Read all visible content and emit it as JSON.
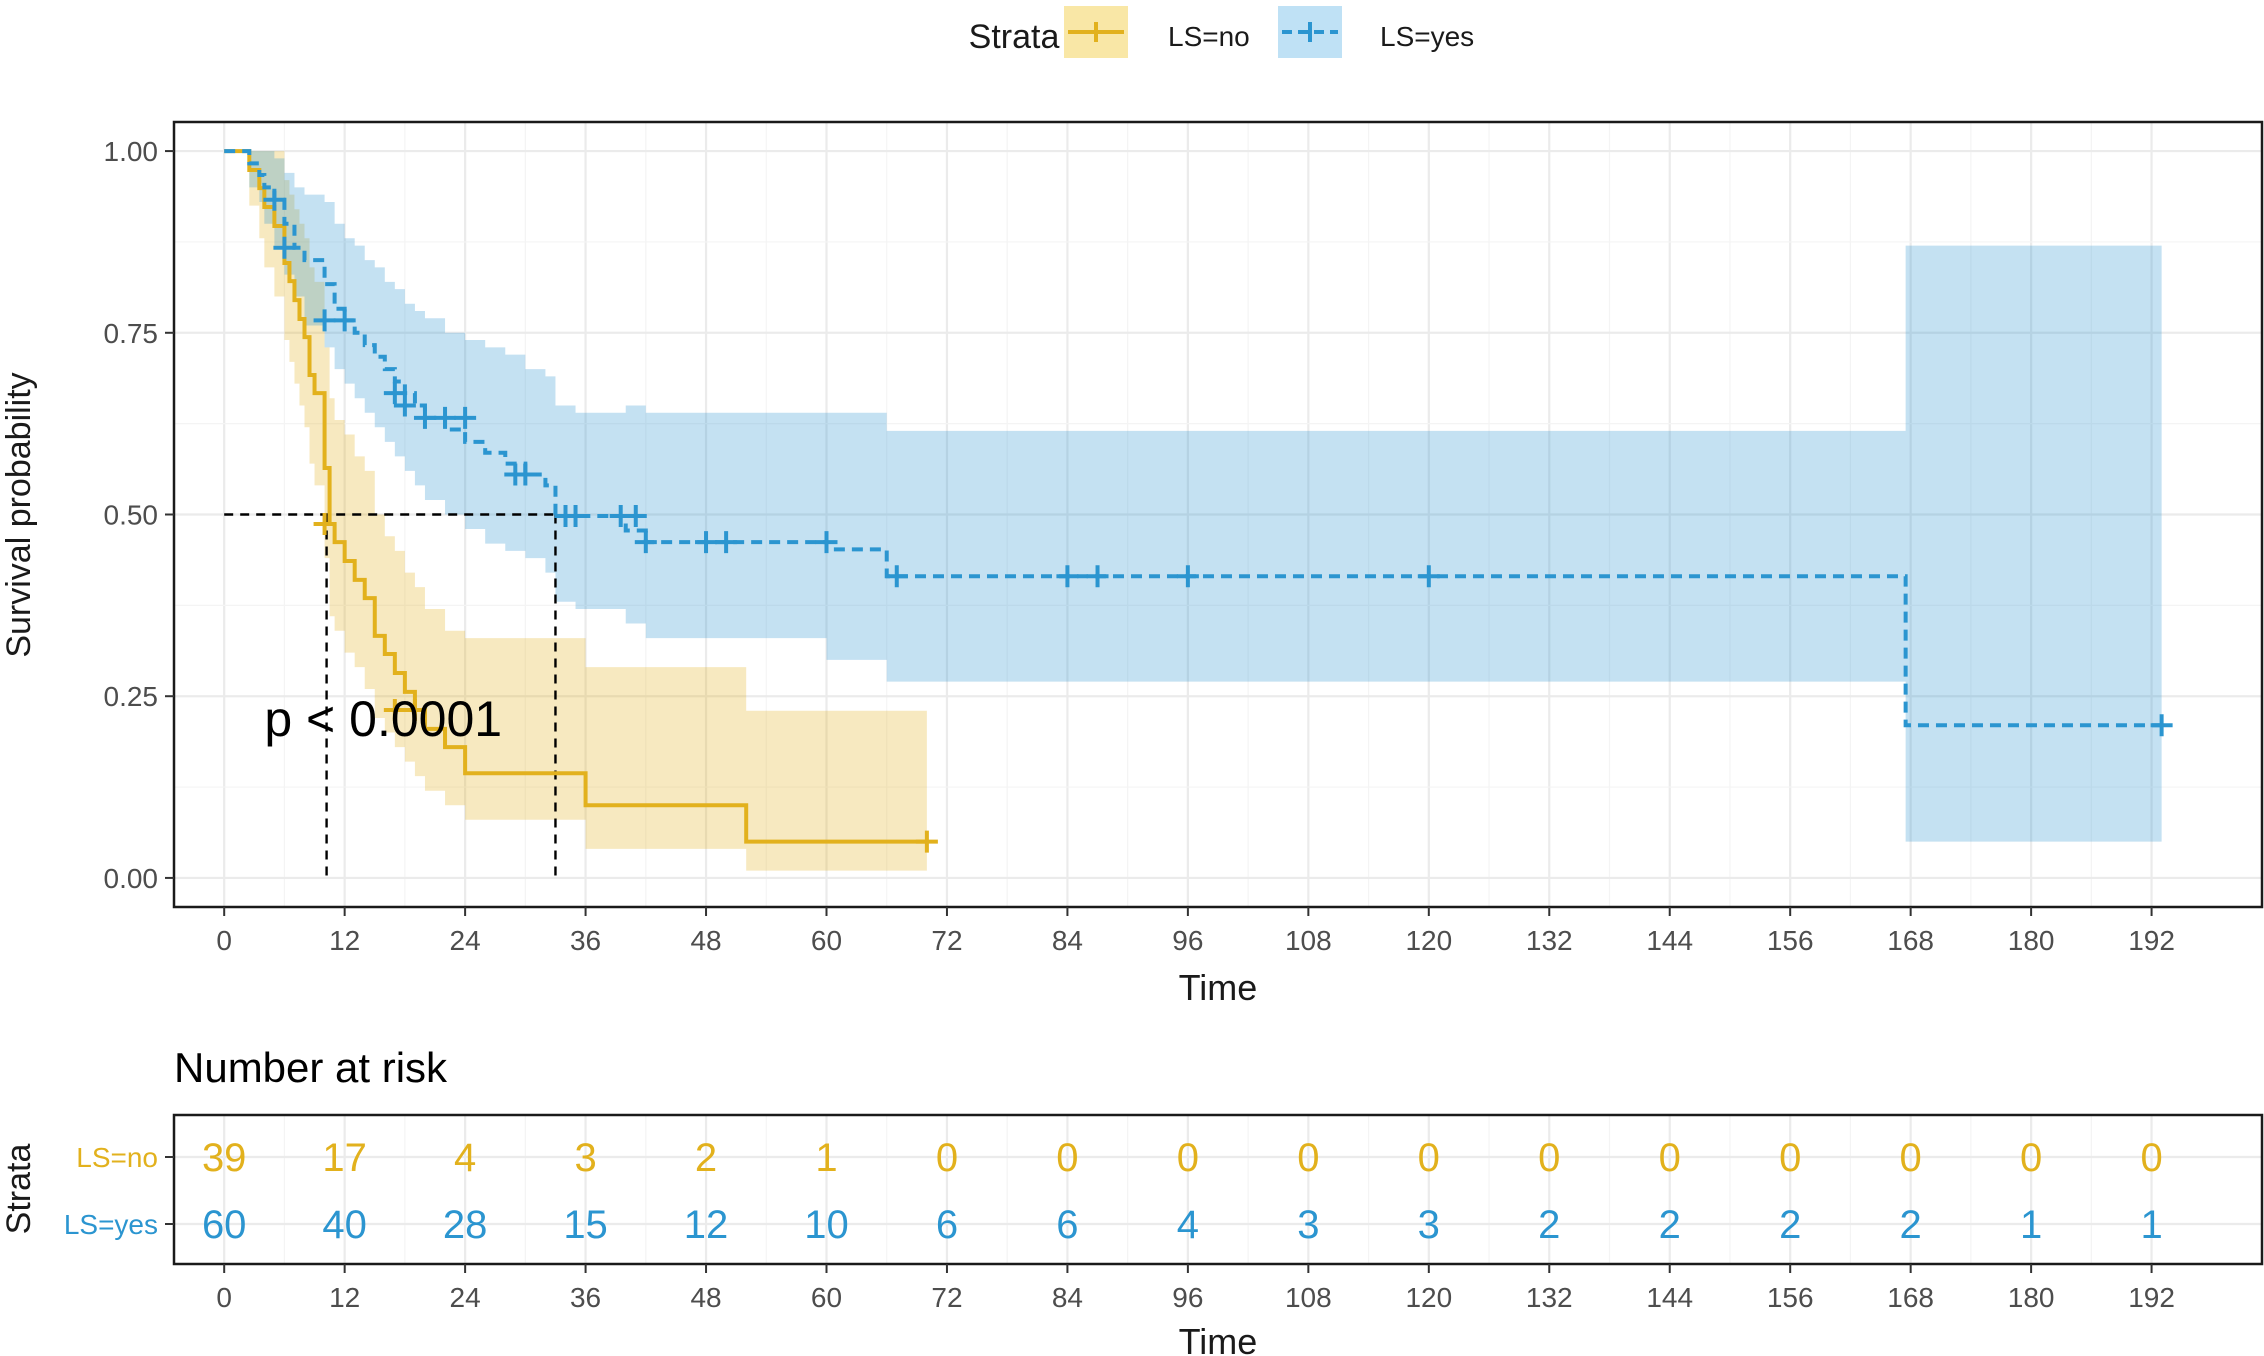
{
  "legend": {
    "title": "Strata",
    "items": [
      {
        "label": "LS=no",
        "color": "#e2b11d",
        "fill": "#f9e7a6"
      },
      {
        "label": "LS=yes",
        "color": "#2b95d0",
        "fill": "#bfe1f5"
      }
    ]
  },
  "chart_data": [
    {
      "type": "line",
      "subtype": "kaplan-meier",
      "title": "",
      "xlabel": "Time",
      "ylabel": "Survival probability",
      "xlim": [
        -5,
        203
      ],
      "ylim": [
        -0.04,
        1.04
      ],
      "xticks": [
        0,
        12,
        24,
        36,
        48,
        60,
        72,
        84,
        96,
        108,
        120,
        132,
        144,
        156,
        168,
        180,
        192
      ],
      "yticks": [
        0.0,
        0.25,
        0.5,
        0.75,
        1.0
      ],
      "ytick_labels": [
        "0.00",
        "0.25",
        "0.50",
        "0.75",
        "1.00"
      ],
      "grid": true,
      "legend_position": "top",
      "annotation": "p < 0.0001",
      "annotation_at": {
        "x": 4,
        "y": 0.195
      },
      "median_lines": [
        {
          "x": 10.2,
          "y": 0.5
        },
        {
          "x": 33,
          "y": 0.5
        }
      ],
      "series": [
        {
          "name": "LS=no",
          "color": "#e2b11d",
          "style": "solid",
          "x": [
            0,
            2.5,
            3.5,
            4,
            5,
            6,
            6.5,
            7,
            7.5,
            8,
            8.5,
            9,
            10,
            10.5,
            11,
            12,
            13,
            14,
            15,
            16,
            17,
            18,
            19,
            20,
            22,
            24,
            36,
            52,
            70
          ],
          "y": [
            1.0,
            0.974,
            0.949,
            0.923,
            0.897,
            0.846,
            0.821,
            0.795,
            0.769,
            0.744,
            0.692,
            0.667,
            0.564,
            0.487,
            0.462,
            0.436,
            0.41,
            0.385,
            0.333,
            0.308,
            0.282,
            0.256,
            0.231,
            0.205,
            0.18,
            0.144,
            0.1,
            0.05,
            0.05
          ],
          "lower": [
            1.0,
            0.925,
            0.88,
            0.84,
            0.8,
            0.74,
            0.71,
            0.68,
            0.65,
            0.62,
            0.57,
            0.54,
            0.44,
            0.36,
            0.34,
            0.31,
            0.29,
            0.26,
            0.22,
            0.2,
            0.18,
            0.16,
            0.14,
            0.12,
            0.1,
            0.08,
            0.04,
            0.01,
            0.01
          ],
          "upper": [
            1.0,
            1.0,
            1.0,
            1.0,
            1.0,
            0.96,
            0.94,
            0.92,
            0.9,
            0.88,
            0.84,
            0.82,
            0.73,
            0.66,
            0.63,
            0.61,
            0.58,
            0.56,
            0.5,
            0.47,
            0.45,
            0.42,
            0.4,
            0.37,
            0.34,
            0.33,
            0.29,
            0.23,
            0.23
          ],
          "censor_x": [
            10,
            17,
            19,
            70
          ],
          "censor_y": [
            0.487,
            0.231,
            0.231,
            0.05
          ]
        },
        {
          "name": "LS=yes",
          "color": "#2b95d0",
          "style": "dashed",
          "x": [
            0,
            2.5,
            3.5,
            4,
            5,
            6,
            7,
            8,
            10,
            11,
            12,
            13,
            14,
            15,
            16,
            17,
            18,
            19,
            20,
            22,
            24,
            26,
            28,
            30,
            32,
            33,
            35,
            37,
            40,
            42,
            45,
            60,
            66,
            167.5,
            193
          ],
          "y": [
            1.0,
            0.983,
            0.967,
            0.95,
            0.933,
            0.9,
            0.867,
            0.85,
            0.817,
            0.783,
            0.767,
            0.75,
            0.733,
            0.717,
            0.7,
            0.683,
            0.667,
            0.65,
            0.633,
            0.617,
            0.6,
            0.585,
            0.57,
            0.555,
            0.54,
            0.498,
            0.498,
            0.498,
            0.478,
            0.462,
            0.462,
            0.452,
            0.415,
            0.21,
            0.21
          ],
          "lower": [
            1.0,
            0.95,
            0.93,
            0.9,
            0.87,
            0.83,
            0.8,
            0.76,
            0.73,
            0.7,
            0.68,
            0.66,
            0.64,
            0.62,
            0.6,
            0.58,
            0.56,
            0.54,
            0.52,
            0.5,
            0.48,
            0.46,
            0.45,
            0.44,
            0.42,
            0.38,
            0.37,
            0.37,
            0.35,
            0.33,
            0.33,
            0.3,
            0.27,
            0.05,
            0.05
          ],
          "upper": [
            1.0,
            1.0,
            1.0,
            1.0,
            0.99,
            0.97,
            0.95,
            0.94,
            0.93,
            0.9,
            0.88,
            0.87,
            0.85,
            0.84,
            0.82,
            0.81,
            0.79,
            0.78,
            0.77,
            0.75,
            0.74,
            0.73,
            0.72,
            0.7,
            0.69,
            0.65,
            0.64,
            0.64,
            0.65,
            0.64,
            0.64,
            0.64,
            0.615,
            0.87,
            0.87
          ],
          "censor_x": [
            5,
            6,
            10,
            12,
            17,
            18,
            20,
            22,
            24,
            29,
            30,
            34,
            35,
            39.5,
            41,
            42,
            48,
            50,
            60,
            67,
            84,
            87,
            96,
            120,
            193
          ],
          "censor_y": [
            0.933,
            0.867,
            0.767,
            0.767,
            0.667,
            0.65,
            0.633,
            0.633,
            0.633,
            0.555,
            0.555,
            0.498,
            0.498,
            0.498,
            0.498,
            0.462,
            0.462,
            0.462,
            0.462,
            0.415,
            0.415,
            0.415,
            0.415,
            0.415,
            0.21
          ]
        }
      ]
    },
    {
      "type": "table",
      "title": "Number at risk",
      "ylabel": "Strata",
      "xlabel": "Time",
      "x": [
        0,
        12,
        24,
        36,
        48,
        60,
        72,
        84,
        96,
        108,
        120,
        132,
        144,
        156,
        168,
        180,
        192
      ],
      "rows": [
        {
          "name": "LS=no",
          "color": "#e2b11d",
          "values": [
            "39",
            "17",
            "4",
            "3",
            "2",
            "1",
            "0",
            "0",
            "0",
            "0",
            "0",
            "0",
            "0",
            "0",
            "0",
            "0",
            "0"
          ]
        },
        {
          "name": "LS=yes",
          "color": "#2b95d0",
          "values": [
            "60",
            "40",
            "28",
            "15",
            "12",
            "10",
            "6",
            "6",
            "4",
            "3",
            "3",
            "2",
            "2",
            "2",
            "2",
            "1",
            "1"
          ]
        }
      ]
    }
  ]
}
